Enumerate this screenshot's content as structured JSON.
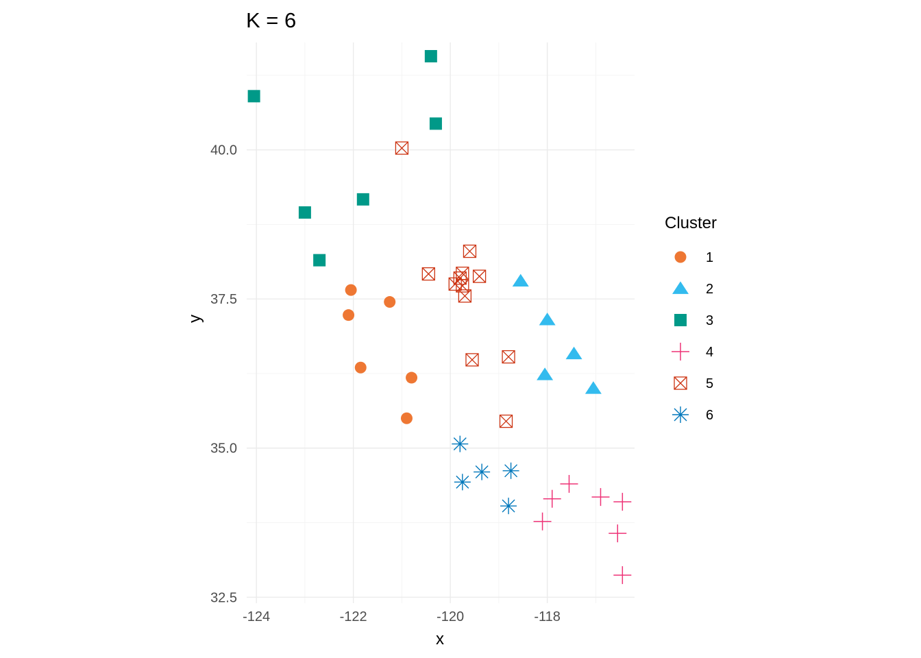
{
  "chart_data": {
    "type": "scatter",
    "title": "K = 6",
    "xlabel": "x",
    "ylabel": "y",
    "xlim": [
      -124.2,
      -116.2
    ],
    "ylim": [
      32.4,
      41.8
    ],
    "x_ticks": [
      -124,
      -122,
      -120,
      -118
    ],
    "x_tick_labels": [
      "-124",
      "-122",
      "-120",
      "-118"
    ],
    "y_ticks": [
      32.5,
      35.0,
      37.5,
      40.0
    ],
    "y_tick_labels": [
      "32.5",
      "35.0",
      "37.5",
      "40.0"
    ],
    "grid": true,
    "legend": {
      "title": "Cluster",
      "position": "right"
    },
    "series": [
      {
        "name": "1",
        "shape": "circle",
        "color": "#EE7733",
        "points": [
          [
            -122.05,
            37.65
          ],
          [
            -122.1,
            37.23
          ],
          [
            -121.25,
            37.45
          ],
          [
            -121.85,
            36.35
          ],
          [
            -120.8,
            36.18
          ],
          [
            -120.9,
            35.5
          ]
        ]
      },
      {
        "name": "2",
        "shape": "triangle",
        "color": "#33BBEE",
        "points": [
          [
            -118.55,
            37.8
          ],
          [
            -118.0,
            37.15
          ],
          [
            -117.45,
            36.58
          ],
          [
            -118.05,
            36.23
          ],
          [
            -117.05,
            36.0
          ]
        ]
      },
      {
        "name": "3",
        "shape": "square",
        "color": "#009988",
        "points": [
          [
            -124.05,
            40.9
          ],
          [
            -120.4,
            41.57
          ],
          [
            -120.3,
            40.44
          ],
          [
            -121.8,
            39.17
          ],
          [
            -123.0,
            38.95
          ],
          [
            -122.7,
            38.15
          ]
        ]
      },
      {
        "name": "4",
        "shape": "plus",
        "color": "#EE3377",
        "points": [
          [
            -117.55,
            34.4
          ],
          [
            -117.9,
            34.15
          ],
          [
            -116.9,
            34.18
          ],
          [
            -116.45,
            34.1
          ],
          [
            -118.1,
            33.77
          ],
          [
            -116.55,
            33.57
          ],
          [
            -116.45,
            32.87
          ]
        ]
      },
      {
        "name": "5",
        "shape": "boxcross",
        "color": "#CC3311",
        "points": [
          [
            -121.0,
            40.03
          ],
          [
            -119.6,
            38.3
          ],
          [
            -120.45,
            37.92
          ],
          [
            -119.75,
            37.93
          ],
          [
            -119.4,
            37.88
          ],
          [
            -119.8,
            37.85
          ],
          [
            -119.9,
            37.75
          ],
          [
            -119.75,
            37.72
          ],
          [
            -119.7,
            37.55
          ],
          [
            -119.55,
            36.48
          ],
          [
            -118.8,
            36.53
          ],
          [
            -118.85,
            35.45
          ]
        ]
      },
      {
        "name": "6",
        "shape": "asterisk",
        "color": "#0077BB",
        "points": [
          [
            -119.8,
            35.07
          ],
          [
            -119.35,
            34.6
          ],
          [
            -118.75,
            34.62
          ],
          [
            -119.75,
            34.43
          ],
          [
            -118.8,
            34.03
          ]
        ]
      }
    ]
  }
}
